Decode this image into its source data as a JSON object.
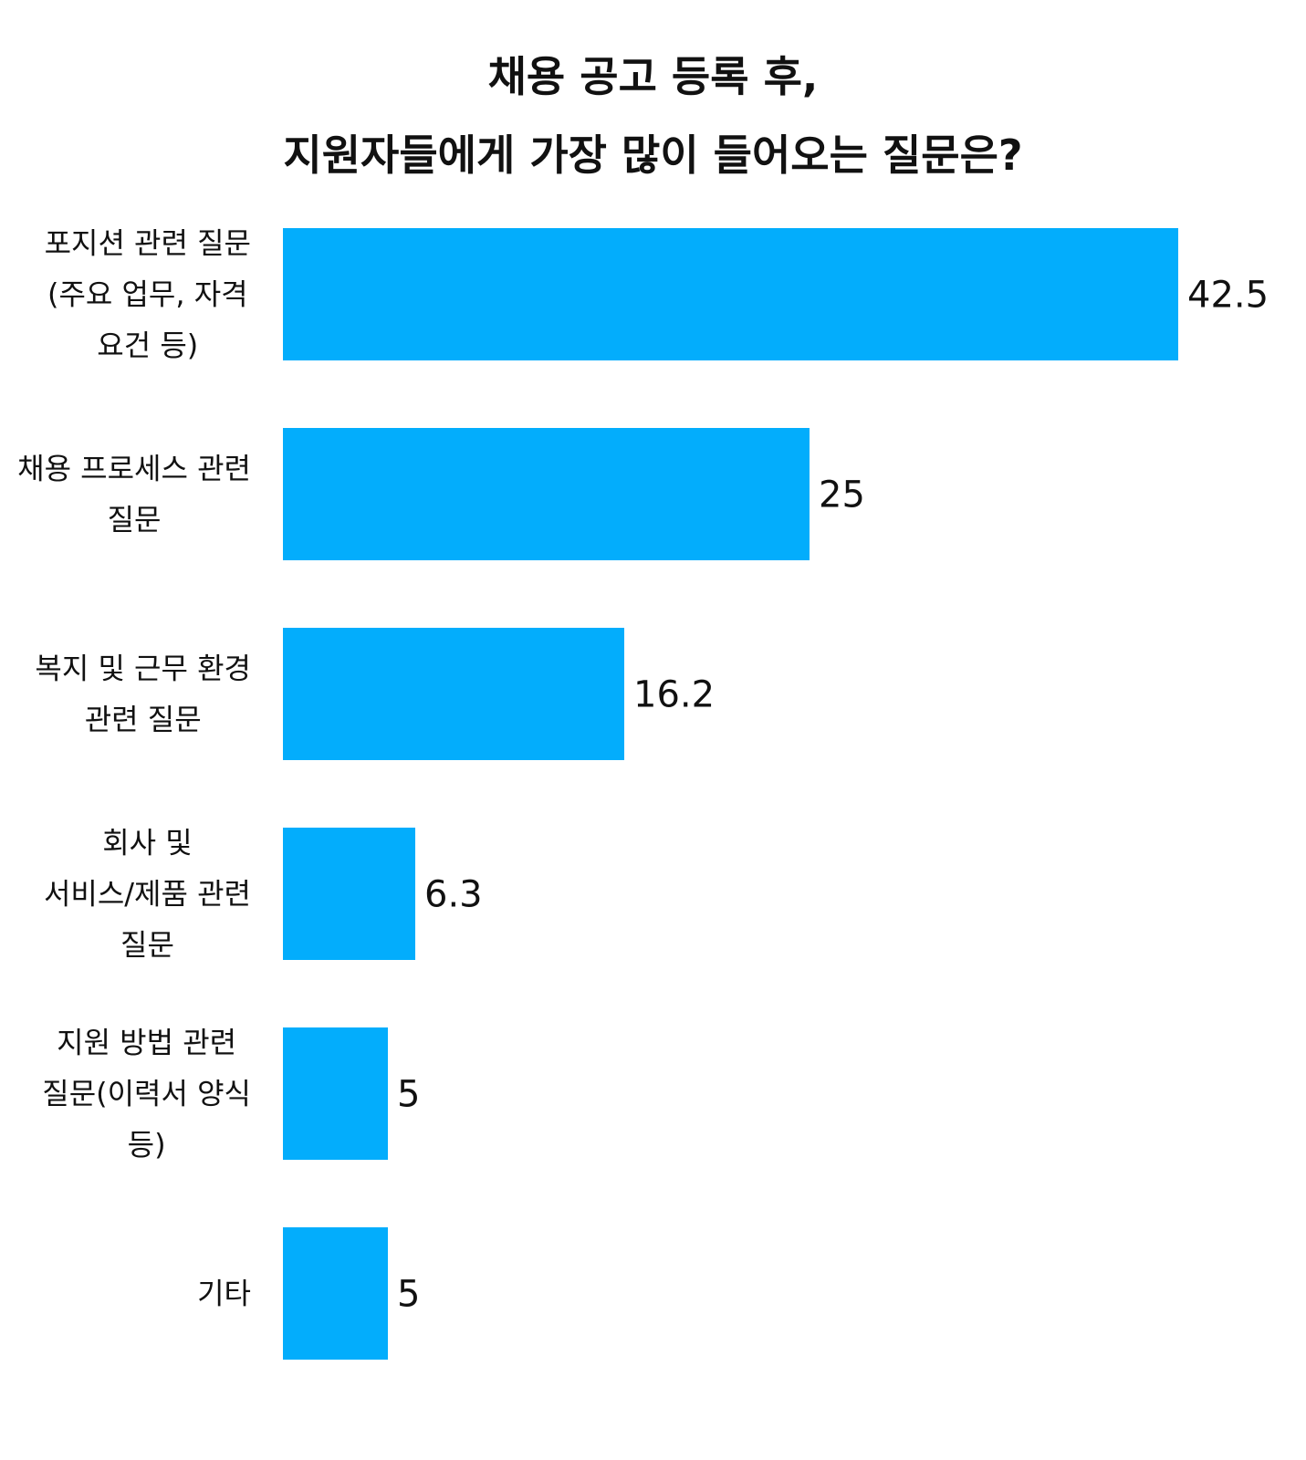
{
  "title_lines": [
    "채용 공고 등록 후,",
    "지원자들에게 가장 많이 들어오는 질문은?"
  ],
  "colors": {
    "bar": "#03adfc",
    "text": "#111111",
    "background": "#ffffff"
  },
  "chart_data": {
    "type": "bar",
    "orientation": "horizontal",
    "title": "채용 공고 등록 후, 지원자들에게 가장 많이 들어오는 질문은?",
    "categories": [
      [
        "포지션 관련 질문",
        "(주요 업무, 자격",
        "요건 등)"
      ],
      [
        "채용 프로세스 관련",
        "질문"
      ],
      [
        "복지 및 근무 환경",
        "관련 질문"
      ],
      [
        "회사 및",
        "서비스/제품 관련",
        "질문"
      ],
      [
        "지원 방법 관련",
        "질문(이력서 양식",
        "등)"
      ],
      [
        "기타"
      ]
    ],
    "values": [
      42.5,
      25,
      16.2,
      6.3,
      5,
      5
    ],
    "value_labels": [
      "42.5",
      "25",
      "16.2",
      "6.3",
      "5",
      "5"
    ],
    "xlim": [
      0,
      42.5
    ],
    "grid": false,
    "legend": "none"
  }
}
